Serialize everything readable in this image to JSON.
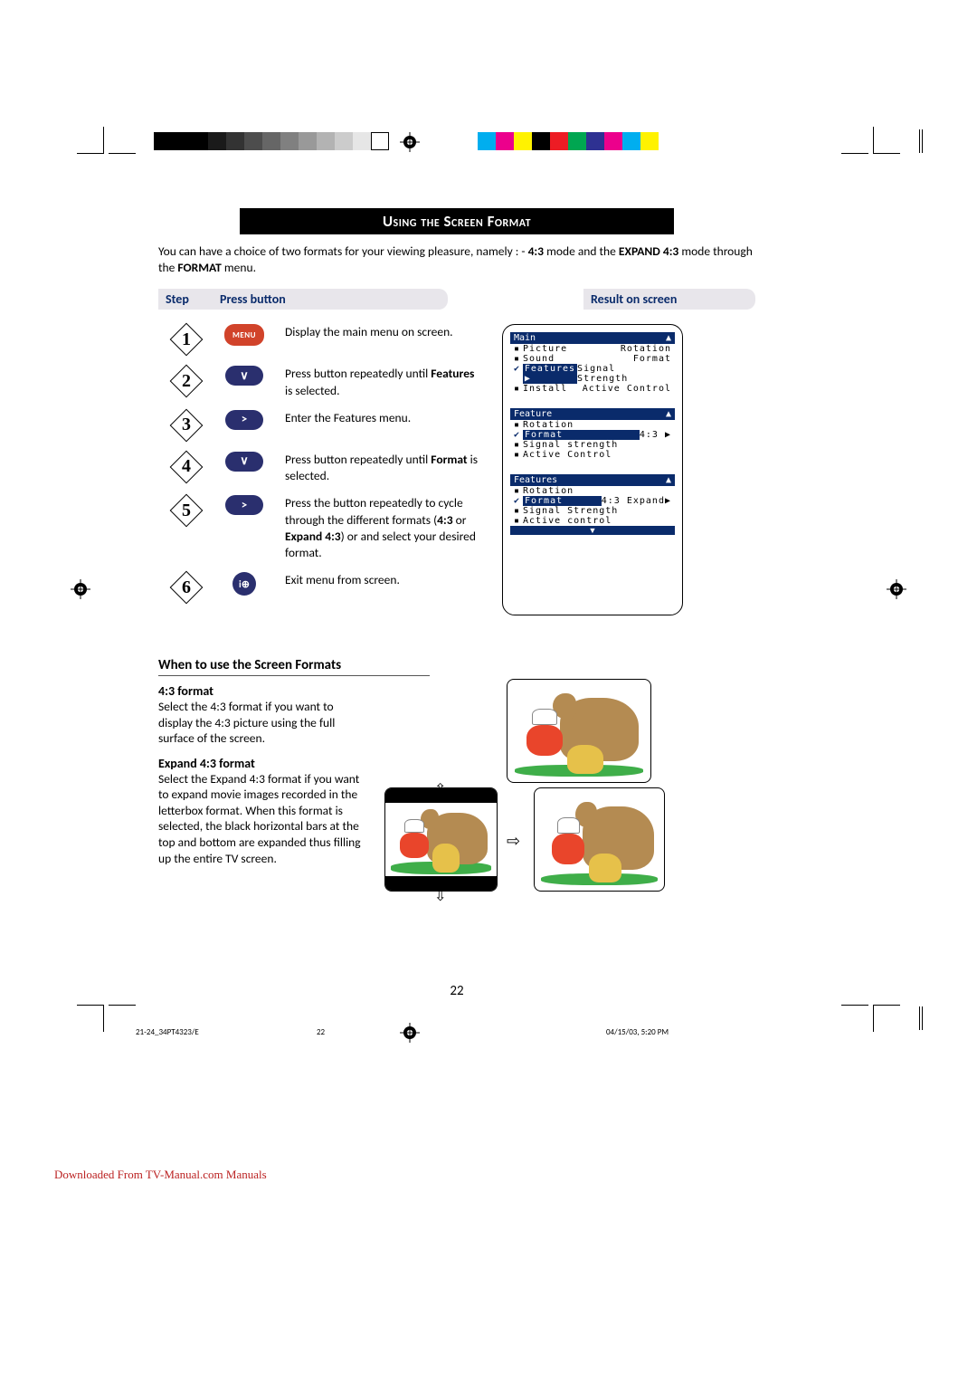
{
  "title": "Using the Screen Format",
  "intro_html": "You can have a choice of two formats for your viewing pleasure, namely : - <b>4:3</b> mode and the <b>EXPAND 4:3</b> mode through the <b>FORMAT</b> menu.",
  "headers": {
    "step": "Step",
    "press": "Press button",
    "result": "Result on screen"
  },
  "steps": [
    {
      "n": "1",
      "btn": "menu",
      "label": "MENU",
      "desc": "Display the main menu on screen."
    },
    {
      "n": "2",
      "btn": "oval",
      "label": "∨",
      "desc": "Press button repeatedly until <b>Features</b> is selected."
    },
    {
      "n": "3",
      "btn": "oval",
      "label": ">",
      "desc": "Enter the Features menu."
    },
    {
      "n": "4",
      "btn": "oval",
      "label": "∨",
      "desc": "Press button repeatedly until <b>Format</b> is selected."
    },
    {
      "n": "5",
      "btn": "oval",
      "label": ">",
      "desc": "Press the button repeatedly to cycle through the different formats (<b>4:3</b> or <b>Expand 4:3</b>) or and select your desired format."
    },
    {
      "n": "6",
      "btn": "circ",
      "label": "i⊕",
      "desc": "Exit menu from screen."
    }
  ],
  "osd1": {
    "title": "Main",
    "arrow": "▲",
    "rows": [
      {
        "m": "▪",
        "l": "Picture",
        "v": "Rotation"
      },
      {
        "m": "▪",
        "l": "Sound",
        "v": "Format"
      },
      {
        "m": "✔",
        "l": "Features",
        "v": "Signal Strength",
        "sel": true,
        "arr": "▶"
      },
      {
        "m": "▪",
        "l": "Install",
        "v": "Active Control"
      }
    ]
  },
  "osd2": {
    "title": "Feature",
    "arrow": "▲",
    "rows": [
      {
        "m": "▪",
        "l": "Rotation",
        "v": ""
      },
      {
        "m": "✔",
        "l": "Format",
        "v": "4:3 ▶",
        "sel": true
      },
      {
        "m": "▪",
        "l": "Signal strength",
        "v": ""
      },
      {
        "m": "▪",
        "l": "Active Control",
        "v": ""
      }
    ]
  },
  "osd3": {
    "title": "Features",
    "arrow": "▲",
    "rows": [
      {
        "m": "▪",
        "l": "Rotation",
        "v": ""
      },
      {
        "m": "✔",
        "l": "Format",
        "v": "4:3 Expand▶",
        "sel": true
      },
      {
        "m": "▪",
        "l": "Signal Strength",
        "v": ""
      },
      {
        "m": "▪",
        "l": "Active control",
        "v": ""
      }
    ],
    "bottom_arrow": "▼"
  },
  "when_heading": "When to use the Screen Formats",
  "fmt43_h": "4:3 format",
  "fmt43_p": "Select the 4:3 format if you want to display the 4:3 picture using the full surface of the screen.",
  "fmtex_h": "Expand 4:3 format",
  "fmtex_p": "Select the Expand 4:3 format if you want to expand movie images recorded in the letterbox format. When this format is selected, the black horizontal bars at the top and bottom are expanded thus filling up the entire TV screen.",
  "page_number": "22",
  "footer": {
    "file": "21-24_34PT4323/E",
    "pg": "22",
    "ts": "04/15/03, 5:20 PM"
  },
  "download_note": "Downloaded From TV-Manual.com Manuals",
  "colorbar": [
    "#00aeef",
    "#ec008c",
    "#fff200",
    "#000000",
    "#ed1c24",
    "#00a651",
    "#2e3192",
    "#ec008c",
    "#00aeef",
    "#fff200"
  ],
  "graybar": [
    "#000",
    "#000",
    "#000",
    "#1a1a1a",
    "#333",
    "#4d4d4d",
    "#666",
    "#808080",
    "#999",
    "#b3b3b3",
    "#ccc",
    "#e6e6e6",
    "#fff"
  ]
}
